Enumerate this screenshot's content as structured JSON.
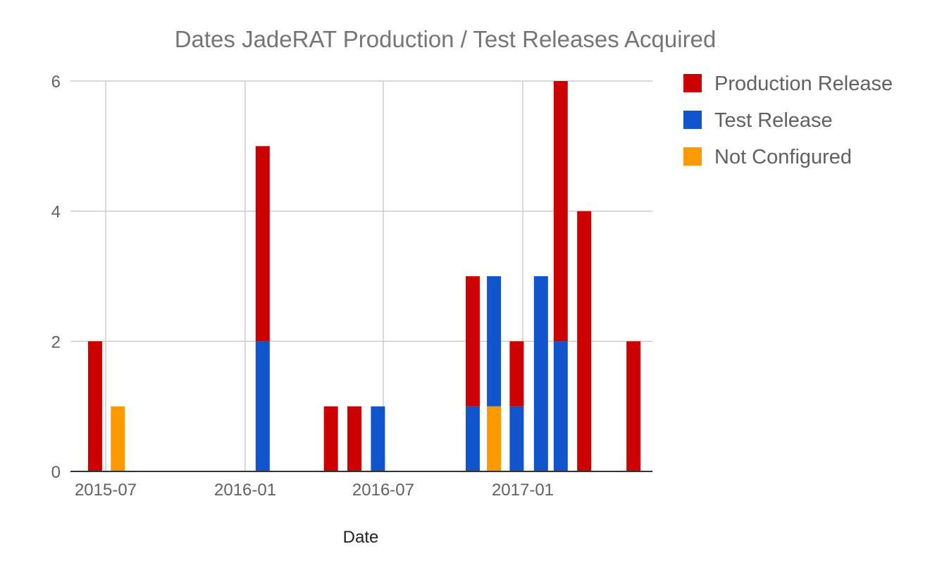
{
  "chart_data": {
    "type": "bar",
    "stacked": true,
    "title": "Dates JadeRAT Production / Test Releases Acquired",
    "xlabel": "Date",
    "ylabel": "",
    "x_ticks": [
      "2015-07",
      "2016-01",
      "2016-07",
      "2017-01"
    ],
    "ylim": [
      0,
      6
    ],
    "y_ticks": [
      "0",
      "2",
      "4",
      "6"
    ],
    "grid": true,
    "legend_position": "right",
    "series": [
      {
        "name": "Production Release",
        "color": "#cc0000"
      },
      {
        "name": "Test Release",
        "color": "#1155cc"
      },
      {
        "name": "Not Configured",
        "color": "#ff9900"
      }
    ],
    "bars": [
      {
        "date": "2015-06-17",
        "values": {
          "Production Release": 2,
          "Test Release": 0,
          "Not Configured": 0
        }
      },
      {
        "date": "2015-07-17",
        "values": {
          "Production Release": 0,
          "Test Release": 0,
          "Not Configured": 1
        }
      },
      {
        "date": "2016-01-24",
        "values": {
          "Production Release": 3,
          "Test Release": 2,
          "Not Configured": 0
        }
      },
      {
        "date": "2016-04-23",
        "values": {
          "Production Release": 1,
          "Test Release": 0,
          "Not Configured": 0
        }
      },
      {
        "date": "2016-05-24",
        "values": {
          "Production Release": 1,
          "Test Release": 0,
          "Not Configured": 0
        }
      },
      {
        "date": "2016-06-24",
        "values": {
          "Production Release": 0,
          "Test Release": 1,
          "Not Configured": 0
        }
      },
      {
        "date": "2016-10-27",
        "values": {
          "Production Release": 2,
          "Test Release": 1,
          "Not Configured": 0
        }
      },
      {
        "date": "2016-11-24",
        "values": {
          "Production Release": 0,
          "Test Release": 2,
          "Not Configured": 1
        }
      },
      {
        "date": "2016-12-24",
        "values": {
          "Production Release": 1,
          "Test Release": 1,
          "Not Configured": 0
        }
      },
      {
        "date": "2017-01-25",
        "values": {
          "Production Release": 0,
          "Test Release": 3,
          "Not Configured": 0
        }
      },
      {
        "date": "2017-02-20",
        "values": {
          "Production Release": 4,
          "Test Release": 2,
          "Not Configured": 0
        }
      },
      {
        "date": "2017-03-23",
        "values": {
          "Production Release": 4,
          "Test Release": 0,
          "Not Configured": 0
        }
      },
      {
        "date": "2017-05-27",
        "values": {
          "Production Release": 2,
          "Test Release": 0,
          "Not Configured": 0
        }
      }
    ]
  }
}
